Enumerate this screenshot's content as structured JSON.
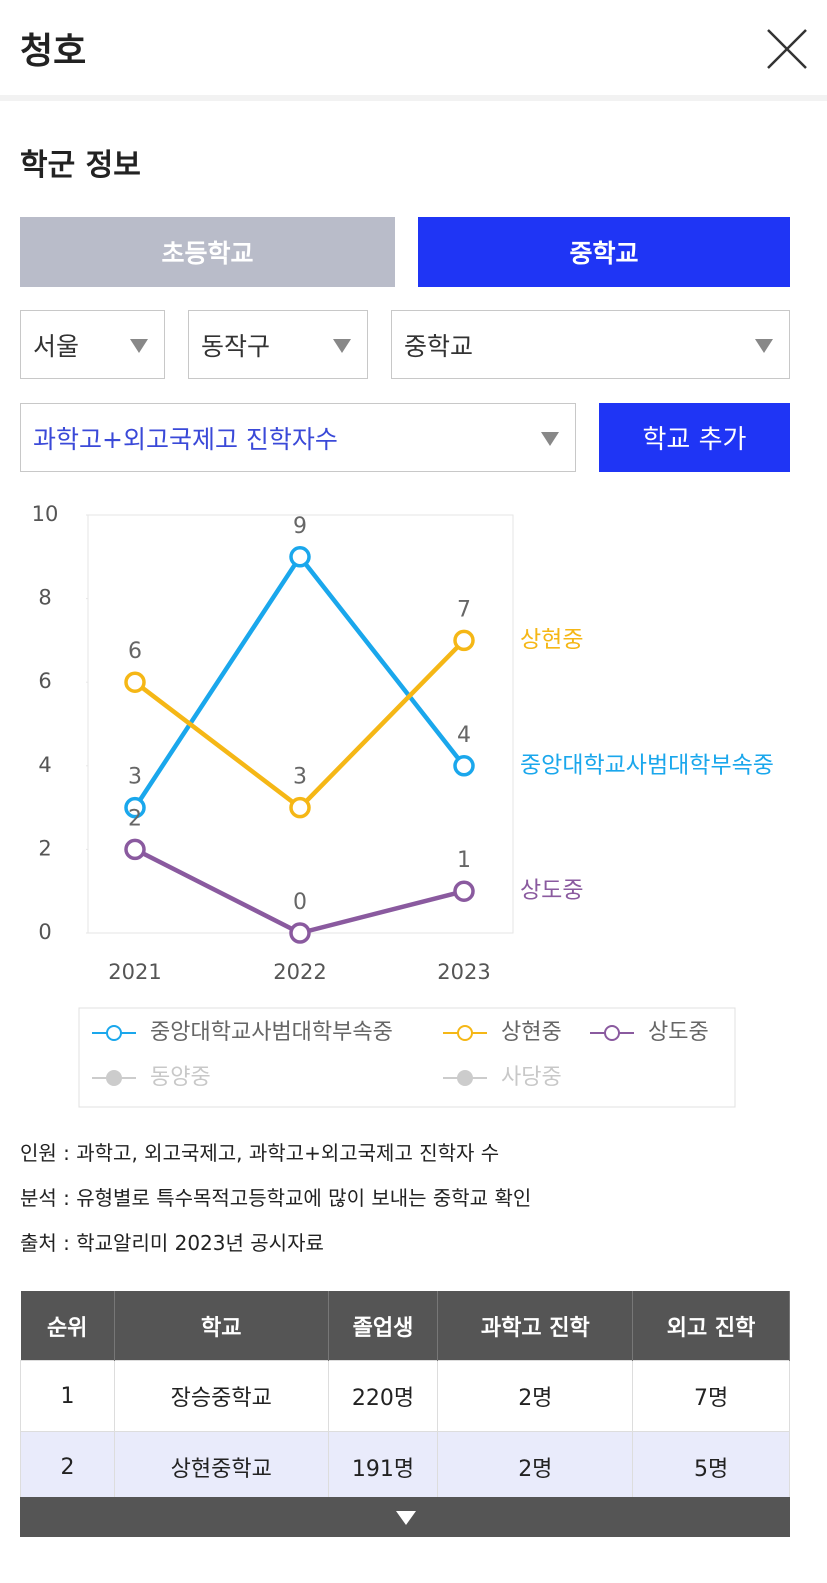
{
  "header": {
    "title": "청호"
  },
  "section": {
    "title": "학군 정보"
  },
  "tabs": [
    "초등학교",
    "중학교"
  ],
  "filters": [
    "서울",
    "동작구",
    "중학교"
  ],
  "metric": "과학고+외고국제고 진학자수",
  "button": "학교 추가",
  "chart_data": {
    "type": "line",
    "categories": [
      "2021",
      "2022",
      "2023"
    ],
    "ylim": [
      0,
      10
    ],
    "yticks": [
      0,
      2,
      4,
      6,
      8,
      10
    ],
    "series": [
      {
        "name": "중앙대학교사범대학부속중",
        "color": "#1aa7ec",
        "values": [
          3,
          9,
          4
        ]
      },
      {
        "name": "상현중",
        "color": "#f5b716",
        "values": [
          6,
          3,
          7
        ]
      },
      {
        "name": "상도중",
        "color": "#8a5a9f",
        "values": [
          2,
          0,
          1
        ]
      },
      {
        "name": "동양중",
        "color": "#cccccc",
        "values": [
          null,
          null,
          null
        ],
        "hidden": true
      },
      {
        "name": "사당중",
        "color": "#cccccc",
        "values": [
          null,
          null,
          null
        ],
        "hidden": true
      }
    ]
  },
  "notes": [
    "인원 : 과학고, 외고국제고, 과학고+외고국제고 진학자 수",
    "분석 : 유형별로 특수목적고등학교에 많이 보내는 중학교 확인",
    "출처 : 학교알리미 2023년 공시자료"
  ],
  "table": {
    "header": [
      "순위",
      "학교",
      "졸업생",
      "과학고 진학",
      "외고 진학"
    ],
    "rows": [
      [
        "1",
        "장승중학교",
        "220명",
        "2명",
        "7명"
      ],
      [
        "2",
        "상현중학교",
        "191명",
        "2명",
        "5명"
      ]
    ]
  }
}
